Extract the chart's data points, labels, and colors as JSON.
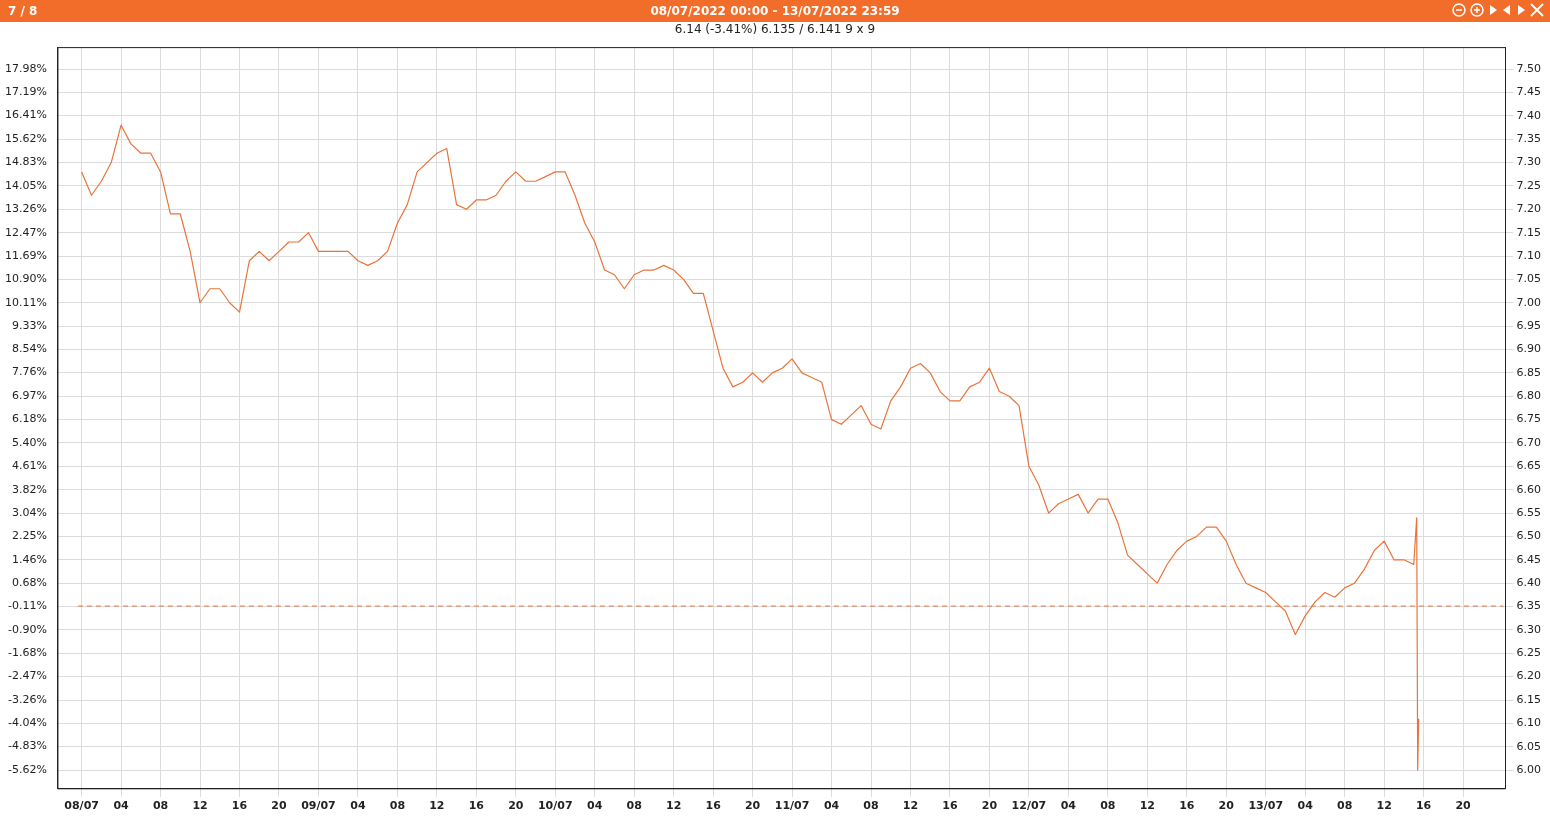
{
  "chart_data": {
    "type": "line",
    "title": "08/07/2022 00:00 - 13/07/2022 23:59",
    "subtitle": "6.14 (-3.41%) 6.135 / 6.141   9 x 9",
    "annotations": [
      "7 / 8"
    ],
    "x": [
      "2022-07-08T00:00",
      "2022-07-08T01:00",
      "2022-07-08T02:00",
      "2022-07-08T03:00",
      "2022-07-08T04:00",
      "2022-07-08T05:00",
      "2022-07-08T06:00",
      "2022-07-08T07:00",
      "2022-07-08T08:00",
      "2022-07-08T09:00",
      "2022-07-08T10:00",
      "2022-07-08T11:00",
      "2022-07-08T12:00",
      "2022-07-08T13:00",
      "2022-07-08T14:00",
      "2022-07-08T15:00",
      "2022-07-08T16:00",
      "2022-07-08T17:00",
      "2022-07-08T18:00",
      "2022-07-08T19:00",
      "2022-07-08T20:00",
      "2022-07-08T21:00",
      "2022-07-08T22:00",
      "2022-07-08T23:00",
      "2022-07-09T00:00",
      "2022-07-09T01:00",
      "2022-07-09T02:00",
      "2022-07-09T03:00",
      "2022-07-09T04:00",
      "2022-07-09T05:00",
      "2022-07-09T06:00",
      "2022-07-09T07:00",
      "2022-07-09T08:00",
      "2022-07-09T09:00",
      "2022-07-09T10:00",
      "2022-07-09T11:00",
      "2022-07-09T12:00",
      "2022-07-09T13:00",
      "2022-07-09T14:00",
      "2022-07-09T15:00",
      "2022-07-09T16:00",
      "2022-07-09T17:00",
      "2022-07-09T18:00",
      "2022-07-09T19:00",
      "2022-07-09T20:00",
      "2022-07-09T21:00",
      "2022-07-09T22:00",
      "2022-07-09T23:00",
      "2022-07-10T00:00",
      "2022-07-10T01:00",
      "2022-07-10T02:00",
      "2022-07-10T03:00",
      "2022-07-10T04:00",
      "2022-07-10T05:00",
      "2022-07-10T06:00",
      "2022-07-10T07:00",
      "2022-07-10T08:00",
      "2022-07-10T09:00",
      "2022-07-10T10:00",
      "2022-07-10T11:00",
      "2022-07-10T12:00",
      "2022-07-10T13:00",
      "2022-07-10T14:00",
      "2022-07-10T15:00",
      "2022-07-10T16:00",
      "2022-07-10T17:00",
      "2022-07-10T18:00",
      "2022-07-10T19:00",
      "2022-07-10T20:00",
      "2022-07-10T21:00",
      "2022-07-10T22:00",
      "2022-07-10T23:00",
      "2022-07-11T00:00",
      "2022-07-11T01:00",
      "2022-07-11T02:00",
      "2022-07-11T03:00",
      "2022-07-11T04:00",
      "2022-07-11T05:00",
      "2022-07-11T06:00",
      "2022-07-11T07:00",
      "2022-07-11T08:00",
      "2022-07-11T09:00",
      "2022-07-11T10:00",
      "2022-07-11T11:00",
      "2022-07-11T12:00",
      "2022-07-11T13:00",
      "2022-07-11T14:00",
      "2022-07-11T15:00",
      "2022-07-11T16:00",
      "2022-07-11T17:00",
      "2022-07-11T18:00",
      "2022-07-11T19:00",
      "2022-07-11T20:00",
      "2022-07-11T21:00",
      "2022-07-11T22:00",
      "2022-07-11T23:00",
      "2022-07-12T00:00",
      "2022-07-12T01:00",
      "2022-07-12T02:00",
      "2022-07-12T03:00",
      "2022-07-12T04:00",
      "2022-07-12T05:00",
      "2022-07-12T06:00",
      "2022-07-12T07:00",
      "2022-07-12T08:00",
      "2022-07-12T09:00",
      "2022-07-12T10:00",
      "2022-07-12T11:00",
      "2022-07-12T12:00",
      "2022-07-12T13:00",
      "2022-07-12T14:00",
      "2022-07-12T15:00",
      "2022-07-12T16:00",
      "2022-07-12T17:00",
      "2022-07-12T18:00",
      "2022-07-12T19:00",
      "2022-07-12T20:00",
      "2022-07-12T21:00",
      "2022-07-12T22:00",
      "2022-07-12T23:00",
      "2022-07-13T00:00",
      "2022-07-13T01:00",
      "2022-07-13T02:00",
      "2022-07-13T03:00",
      "2022-07-13T04:00",
      "2022-07-13T05:00",
      "2022-07-13T06:00",
      "2022-07-13T07:00",
      "2022-07-13T08:00",
      "2022-07-13T09:00",
      "2022-07-13T10:00",
      "2022-07-13T11:00",
      "2022-07-13T12:00",
      "2022-07-13T13:00",
      "2022-07-13T14:00",
      "2022-07-13T15:00",
      "2022-07-13T15:18",
      "2022-07-13T15:24",
      "2022-07-13T15:30"
    ],
    "series": [
      {
        "color": "#e8743b",
        "axis": "y2",
        "values": [
          7.28,
          7.23,
          7.26,
          7.3,
          7.38,
          7.34,
          7.32,
          7.32,
          7.28,
          7.19,
          7.19,
          7.11,
          7.0,
          7.03,
          7.03,
          7.0,
          6.98,
          7.09,
          7.11,
          7.09,
          7.11,
          7.13,
          7.13,
          7.15,
          7.11,
          7.11,
          7.11,
          7.11,
          7.09,
          7.08,
          7.09,
          7.11,
          7.17,
          7.21,
          7.28,
          7.3,
          7.32,
          7.33,
          7.21,
          7.2,
          7.22,
          7.22,
          7.23,
          7.26,
          7.28,
          7.26,
          7.26,
          7.27,
          7.28,
          7.28,
          7.23,
          7.17,
          7.13,
          7.07,
          7.06,
          7.03,
          7.06,
          7.07,
          7.07,
          7.08,
          7.07,
          7.05,
          7.02,
          7.02,
          6.94,
          6.86,
          6.82,
          6.83,
          6.85,
          6.83,
          6.85,
          6.86,
          6.88,
          6.85,
          6.84,
          6.83,
          6.75,
          6.74,
          6.76,
          6.78,
          6.74,
          6.73,
          6.79,
          6.82,
          6.86,
          6.87,
          6.85,
          6.81,
          6.79,
          6.79,
          6.82,
          6.83,
          6.86,
          6.81,
          6.8,
          6.78,
          6.65,
          6.61,
          6.55,
          6.57,
          6.58,
          6.59,
          6.55,
          6.58,
          6.58,
          6.53,
          6.46,
          6.44,
          6.42,
          6.4,
          6.44,
          6.47,
          6.49,
          6.5,
          6.52,
          6.52,
          6.49,
          6.44,
          6.4,
          6.39,
          6.38,
          6.36,
          6.34,
          6.29,
          6.33,
          6.36,
          6.38,
          6.37,
          6.39,
          6.4,
          6.43,
          6.47,
          6.49,
          6.45,
          6.45,
          6.44,
          6.54,
          6.0,
          6.11
        ]
      }
    ],
    "xlim": [
      "2022-07-07T21:36",
      "2022-07-14T00:18"
    ],
    "xticks": [
      {
        "value": "2022-07-08T00:00",
        "label": "08/07"
      },
      {
        "value": "2022-07-08T04:00",
        "label": "04"
      },
      {
        "value": "2022-07-08T08:00",
        "label": "08"
      },
      {
        "value": "2022-07-08T12:00",
        "label": "12"
      },
      {
        "value": "2022-07-08T16:00",
        "label": "16"
      },
      {
        "value": "2022-07-08T20:00",
        "label": "20"
      },
      {
        "value": "2022-07-09T00:00",
        "label": "09/07"
      },
      {
        "value": "2022-07-09T04:00",
        "label": "04"
      },
      {
        "value": "2022-07-09T08:00",
        "label": "08"
      },
      {
        "value": "2022-07-09T12:00",
        "label": "12"
      },
      {
        "value": "2022-07-09T16:00",
        "label": "16"
      },
      {
        "value": "2022-07-09T20:00",
        "label": "20"
      },
      {
        "value": "2022-07-10T00:00",
        "label": "10/07"
      },
      {
        "value": "2022-07-10T04:00",
        "label": "04"
      },
      {
        "value": "2022-07-10T08:00",
        "label": "08"
      },
      {
        "value": "2022-07-10T12:00",
        "label": "12"
      },
      {
        "value": "2022-07-10T16:00",
        "label": "16"
      },
      {
        "value": "2022-07-10T20:00",
        "label": "20"
      },
      {
        "value": "2022-07-11T00:00",
        "label": "11/07"
      },
      {
        "value": "2022-07-11T04:00",
        "label": "04"
      },
      {
        "value": "2022-07-11T08:00",
        "label": "08"
      },
      {
        "value": "2022-07-11T12:00",
        "label": "12"
      },
      {
        "value": "2022-07-11T16:00",
        "label": "16"
      },
      {
        "value": "2022-07-11T20:00",
        "label": "20"
      },
      {
        "value": "2022-07-12T00:00",
        "label": "12/07"
      },
      {
        "value": "2022-07-12T04:00",
        "label": "04"
      },
      {
        "value": "2022-07-12T08:00",
        "label": "08"
      },
      {
        "value": "2022-07-12T12:00",
        "label": "12"
      },
      {
        "value": "2022-07-12T16:00",
        "label": "16"
      },
      {
        "value": "2022-07-12T20:00",
        "label": "20"
      },
      {
        "value": "2022-07-13T00:00",
        "label": "13/07"
      },
      {
        "value": "2022-07-13T04:00",
        "label": "04"
      },
      {
        "value": "2022-07-13T08:00",
        "label": "08"
      },
      {
        "value": "2022-07-13T12:00",
        "label": "12"
      },
      {
        "value": "2022-07-13T16:00",
        "label": "16"
      },
      {
        "value": "2022-07-13T20:00",
        "label": "20"
      }
    ],
    "ylim": [
      -6.25,
      18.7
    ],
    "yticks": [
      {
        "value": 17.98,
        "label": "17.98%"
      },
      {
        "value": 17.19,
        "label": "17.19%"
      },
      {
        "value": 16.41,
        "label": "16.41%"
      },
      {
        "value": 15.62,
        "label": "15.62%"
      },
      {
        "value": 14.83,
        "label": "14.83%"
      },
      {
        "value": 14.05,
        "label": "14.05%"
      },
      {
        "value": 13.26,
        "label": "13.26%"
      },
      {
        "value": 12.47,
        "label": "12.47%"
      },
      {
        "value": 11.69,
        "label": "11.69%"
      },
      {
        "value": 10.9,
        "label": "10.90%"
      },
      {
        "value": 10.11,
        "label": "10.11%"
      },
      {
        "value": 9.33,
        "label": "9.33%"
      },
      {
        "value": 8.54,
        "label": "8.54%"
      },
      {
        "value": 7.76,
        "label": "7.76%"
      },
      {
        "value": 6.97,
        "label": "6.97%"
      },
      {
        "value": 6.18,
        "label": "6.18%"
      },
      {
        "value": 5.4,
        "label": "5.40%"
      },
      {
        "value": 4.61,
        "label": "4.61%"
      },
      {
        "value": 3.82,
        "label": "3.82%"
      },
      {
        "value": 3.04,
        "label": "3.04%"
      },
      {
        "value": 2.25,
        "label": "2.25%"
      },
      {
        "value": 1.46,
        "label": "1.46%"
      },
      {
        "value": 0.68,
        "label": "0.68%"
      },
      {
        "value": -0.11,
        "label": "-0.11%"
      },
      {
        "value": -0.9,
        "label": "-0.90%"
      },
      {
        "value": -1.68,
        "label": "-1.68%"
      },
      {
        "value": -2.47,
        "label": "-2.47%"
      },
      {
        "value": -3.26,
        "label": "-3.26%"
      },
      {
        "value": -4.04,
        "label": "-4.04%"
      },
      {
        "value": -4.83,
        "label": "-4.83%"
      },
      {
        "value": -5.62,
        "label": "-5.62%"
      }
    ],
    "y2lim": [
      5.96,
      7.546
    ],
    "y2ticks": [
      {
        "value": 6,
        "label": "6.00"
      },
      {
        "value": 6.05,
        "label": "6.05"
      },
      {
        "value": 6.1,
        "label": "6.10"
      },
      {
        "value": 6.15,
        "label": "6.15"
      },
      {
        "value": 6.2,
        "label": "6.20"
      },
      {
        "value": 6.25,
        "label": "6.25"
      },
      {
        "value": 6.3,
        "label": "6.30"
      },
      {
        "value": 6.35,
        "label": "6.35"
      },
      {
        "value": 6.4,
        "label": "6.40"
      },
      {
        "value": 6.45,
        "label": "6.45"
      },
      {
        "value": 6.5,
        "label": "6.50"
      },
      {
        "value": 6.55,
        "label": "6.55"
      },
      {
        "value": 6.6,
        "label": "6.60"
      },
      {
        "value": 6.65,
        "label": "6.65"
      },
      {
        "value": 6.7,
        "label": "6.70"
      },
      {
        "value": 6.75,
        "label": "6.75"
      },
      {
        "value": 6.8,
        "label": "6.80"
      },
      {
        "value": 6.85,
        "label": "6.85"
      },
      {
        "value": 6.9,
        "label": "6.90"
      },
      {
        "value": 6.95,
        "label": "6.95"
      },
      {
        "value": 7,
        "label": "7.00"
      },
      {
        "value": 7.05,
        "label": "7.05"
      },
      {
        "value": 7.1,
        "label": "7.10"
      },
      {
        "value": 7.15,
        "label": "7.15"
      },
      {
        "value": 7.2,
        "label": "7.20"
      },
      {
        "value": 7.25,
        "label": "7.25"
      },
      {
        "value": 7.3,
        "label": "7.30"
      },
      {
        "value": 7.35,
        "label": "7.35"
      },
      {
        "value": 7.4,
        "label": "7.40"
      },
      {
        "value": 7.45,
        "label": "7.45"
      },
      {
        "value": 7.5,
        "label": "7.50"
      }
    ],
    "ref_lines": [
      {
        "axis": "y2",
        "value": 6.351,
        "color": "#e8743b",
        "line_style": "dashed"
      }
    ],
    "grid": true
  }
}
